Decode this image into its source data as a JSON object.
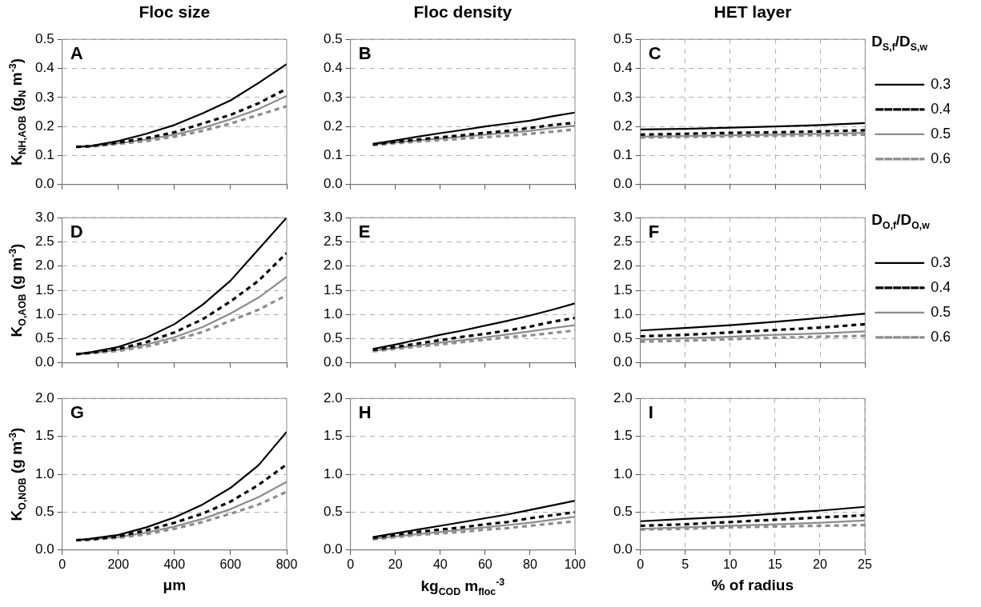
{
  "chart_data": [
    {
      "type": "line",
      "title": "Floc size",
      "ylabel": "K$_{NH,AOB}$ (g$_{N}$ m$^{-3}$)",
      "annotations": [
        "A"
      ],
      "x": [
        50,
        100,
        200,
        300,
        400,
        500,
        600,
        700,
        800
      ],
      "xlim": [
        0,
        800
      ],
      "xticks": [
        0,
        200,
        400,
        600,
        800
      ],
      "ylim": [
        0,
        0.5
      ],
      "yticks": [
        {
          "value": 0,
          "label": "0.0"
        },
        {
          "value": 0.1,
          "label": "0.1"
        },
        {
          "value": 0.2,
          "label": "0.2"
        },
        {
          "value": 0.3,
          "label": "0.3"
        },
        {
          "value": 0.4,
          "label": "0.4"
        },
        {
          "value": 0.5,
          "label": "0.5"
        }
      ],
      "grid": "y",
      "tick_labels": "y",
      "marker": "none",
      "series": [
        {
          "color": "#000000",
          "line_style": "solid",
          "values": [
            0.13,
            0.133,
            0.15,
            0.175,
            0.205,
            0.245,
            0.29,
            0.35,
            0.415
          ]
        },
        {
          "color": "#000000",
          "line_style": "dashed",
          "values": [
            0.13,
            0.132,
            0.145,
            0.16,
            0.18,
            0.21,
            0.24,
            0.28,
            0.33
          ]
        },
        {
          "color": "#8c8c8c",
          "line_style": "solid",
          "values": [
            0.13,
            0.131,
            0.142,
            0.155,
            0.172,
            0.195,
            0.225,
            0.26,
            0.305
          ]
        },
        {
          "color": "#8c8c8c",
          "line_style": "dashed",
          "values": [
            0.13,
            0.131,
            0.14,
            0.15,
            0.165,
            0.185,
            0.21,
            0.24,
            0.27
          ]
        }
      ]
    },
    {
      "type": "line",
      "title": "Floc density",
      "annotations": [
        "B"
      ],
      "x": [
        10,
        20,
        30,
        40,
        50,
        60,
        70,
        80,
        90,
        100
      ],
      "xlim": [
        0,
        100
      ],
      "xticks": [
        0,
        20,
        40,
        60,
        80,
        100
      ],
      "ylim": [
        0,
        0.5
      ],
      "yticks": [
        {
          "value": 0,
          "label": "0.0"
        },
        {
          "value": 0.1,
          "label": "0.1"
        },
        {
          "value": 0.2,
          "label": "0.2"
        },
        {
          "value": 0.3,
          "label": "0.3"
        },
        {
          "value": 0.4,
          "label": "0.4"
        },
        {
          "value": 0.5,
          "label": "0.5"
        }
      ],
      "grid": "y",
      "tick_labels": "y",
      "marker": "none",
      "series": [
        {
          "color": "#000000",
          "line_style": "solid",
          "values": [
            0.14,
            0.152,
            0.165,
            0.177,
            0.188,
            0.2,
            0.21,
            0.22,
            0.235,
            0.248
          ]
        },
        {
          "color": "#000000",
          "line_style": "dashed",
          "values": [
            0.138,
            0.147,
            0.155,
            0.163,
            0.17,
            0.178,
            0.185,
            0.195,
            0.205,
            0.213
          ]
        },
        {
          "color": "#8c8c8c",
          "line_style": "solid",
          "values": [
            0.138,
            0.145,
            0.152,
            0.158,
            0.165,
            0.172,
            0.178,
            0.185,
            0.195,
            0.203
          ]
        },
        {
          "color": "#8c8c8c",
          "line_style": "dashed",
          "values": [
            0.136,
            0.142,
            0.148,
            0.153,
            0.158,
            0.163,
            0.168,
            0.175,
            0.182,
            0.19
          ]
        }
      ]
    },
    {
      "type": "line",
      "title": "HET layer",
      "annotations": [
        "C"
      ],
      "legend": "right",
      "legend_title": "D$_{S,f}$/D$_{S,w}$",
      "x": [
        0,
        5,
        10,
        15,
        20,
        25
      ],
      "xlim": [
        0,
        25
      ],
      "xticks": [
        0,
        5,
        10,
        15,
        20,
        25
      ],
      "ylim": [
        0,
        0.5
      ],
      "yticks": [
        {
          "value": 0,
          "label": "0.0"
        },
        {
          "value": 0.1,
          "label": "0.1"
        },
        {
          "value": 0.2,
          "label": "0.2"
        },
        {
          "value": 0.3,
          "label": "0.3"
        },
        {
          "value": 0.4,
          "label": "0.4"
        },
        {
          "value": 0.5,
          "label": "0.5"
        }
      ],
      "grid": true,
      "tick_labels": "y",
      "marker": "none",
      "series": [
        {
          "name": "0.3",
          "color": "#000000",
          "line_style": "solid",
          "values": [
            0.19,
            0.192,
            0.196,
            0.2,
            0.205,
            0.212
          ]
        },
        {
          "name": "0.4",
          "color": "#000000",
          "line_style": "dashed",
          "values": [
            0.172,
            0.175,
            0.178,
            0.18,
            0.183,
            0.187
          ]
        },
        {
          "name": "0.5",
          "color": "#8c8c8c",
          "line_style": "solid",
          "values": [
            0.165,
            0.167,
            0.17,
            0.172,
            0.175,
            0.178
          ]
        },
        {
          "name": "0.6",
          "color": "#8c8c8c",
          "line_style": "dashed",
          "values": [
            0.162,
            0.164,
            0.166,
            0.168,
            0.17,
            0.172
          ]
        }
      ]
    },
    {
      "type": "line",
      "ylabel": "K$_{O,AOB}$ (g m$^{-3}$)",
      "annotations": [
        "D"
      ],
      "x": [
        50,
        100,
        200,
        300,
        400,
        500,
        600,
        700,
        800
      ],
      "xlim": [
        0,
        800
      ],
      "xticks": [
        0,
        200,
        400,
        600,
        800
      ],
      "ylim": [
        0,
        3
      ],
      "yticks": [
        {
          "value": 0,
          "label": "0.0"
        },
        {
          "value": 0.5,
          "label": "0.5"
        },
        {
          "value": 1,
          "label": "1.0"
        },
        {
          "value": 1.5,
          "label": "1.5"
        },
        {
          "value": 2,
          "label": "2.0"
        },
        {
          "value": 2.5,
          "label": "2.5"
        },
        {
          "value": 3,
          "label": "3.0"
        }
      ],
      "grid": "y",
      "tick_labels": "y",
      "marker": "none",
      "series": [
        {
          "color": "#000000",
          "line_style": "solid",
          "values": [
            0.18,
            0.22,
            0.33,
            0.52,
            0.8,
            1.2,
            1.7,
            2.35,
            3.0
          ]
        },
        {
          "color": "#000000",
          "line_style": "dashed",
          "values": [
            0.18,
            0.21,
            0.29,
            0.43,
            0.63,
            0.9,
            1.27,
            1.7,
            2.27
          ]
        },
        {
          "color": "#8c8c8c",
          "line_style": "solid",
          "values": [
            0.18,
            0.2,
            0.27,
            0.38,
            0.53,
            0.74,
            1.02,
            1.35,
            1.78
          ]
        },
        {
          "color": "#8c8c8c",
          "line_style": "dashed",
          "values": [
            0.18,
            0.2,
            0.25,
            0.34,
            0.47,
            0.64,
            0.87,
            1.1,
            1.4
          ]
        }
      ]
    },
    {
      "type": "line",
      "annotations": [
        "E"
      ],
      "x": [
        10,
        20,
        30,
        40,
        50,
        60,
        70,
        80,
        90,
        100
      ],
      "xlim": [
        0,
        100
      ],
      "xticks": [
        0,
        20,
        40,
        60,
        80,
        100
      ],
      "ylim": [
        0,
        3
      ],
      "yticks": [
        {
          "value": 0,
          "label": "0.0"
        },
        {
          "value": 0.5,
          "label": "0.5"
        },
        {
          "value": 1,
          "label": "1.0"
        },
        {
          "value": 1.5,
          "label": "1.5"
        },
        {
          "value": 2,
          "label": "2.0"
        },
        {
          "value": 2.5,
          "label": "2.5"
        },
        {
          "value": 3,
          "label": "3.0"
        }
      ],
      "grid": "y",
      "tick_labels": "y",
      "marker": "none",
      "series": [
        {
          "color": "#000000",
          "line_style": "solid",
          "values": [
            0.29,
            0.38,
            0.48,
            0.58,
            0.67,
            0.77,
            0.87,
            0.98,
            1.1,
            1.23
          ]
        },
        {
          "color": "#000000",
          "line_style": "dashed",
          "values": [
            0.27,
            0.33,
            0.4,
            0.47,
            0.54,
            0.6,
            0.67,
            0.75,
            0.85,
            0.93
          ]
        },
        {
          "color": "#8c8c8c",
          "line_style": "solid",
          "values": [
            0.25,
            0.31,
            0.36,
            0.42,
            0.47,
            0.53,
            0.59,
            0.65,
            0.72,
            0.78
          ]
        },
        {
          "color": "#8c8c8c",
          "line_style": "dashed",
          "values": [
            0.24,
            0.29,
            0.34,
            0.38,
            0.43,
            0.48,
            0.53,
            0.57,
            0.62,
            0.67
          ]
        }
      ]
    },
    {
      "type": "line",
      "annotations": [
        "F"
      ],
      "legend": "right",
      "legend_title": "D$_{O,f}$/D$_{O,w}$",
      "x": [
        0,
        5,
        10,
        15,
        20,
        25
      ],
      "xlim": [
        0,
        25
      ],
      "xticks": [
        0,
        5,
        10,
        15,
        20,
        25
      ],
      "ylim": [
        0,
        3
      ],
      "yticks": [
        {
          "value": 0,
          "label": "0.0"
        },
        {
          "value": 0.5,
          "label": "0.5"
        },
        {
          "value": 1,
          "label": "1.0"
        },
        {
          "value": 1.5,
          "label": "1.5"
        },
        {
          "value": 2,
          "label": "2.0"
        },
        {
          "value": 2.5,
          "label": "2.5"
        },
        {
          "value": 3,
          "label": "3.0"
        }
      ],
      "grid": true,
      "tick_labels": "y",
      "marker": "none",
      "series": [
        {
          "name": "0.3",
          "color": "#000000",
          "line_style": "solid",
          "values": [
            0.67,
            0.72,
            0.78,
            0.85,
            0.93,
            1.02
          ]
        },
        {
          "name": "0.4",
          "color": "#000000",
          "line_style": "dashed",
          "values": [
            0.55,
            0.58,
            0.63,
            0.68,
            0.73,
            0.8
          ]
        },
        {
          "name": "0.5",
          "color": "#8c8c8c",
          "line_style": "solid",
          "values": [
            0.48,
            0.51,
            0.54,
            0.58,
            0.61,
            0.65
          ]
        },
        {
          "name": "0.6",
          "color": "#8c8c8c",
          "line_style": "dashed",
          "values": [
            0.44,
            0.46,
            0.49,
            0.52,
            0.54,
            0.56
          ]
        }
      ]
    },
    {
      "type": "line",
      "ylabel": "K$_{O,NOB}$ (g m$^{-3}$)",
      "xlabel": "μm",
      "annotations": [
        "G"
      ],
      "x": [
        50,
        100,
        200,
        300,
        400,
        500,
        600,
        700,
        800
      ],
      "xlim": [
        0,
        800
      ],
      "xticks": [
        0,
        200,
        400,
        600,
        800
      ],
      "ylim": [
        0,
        2
      ],
      "yticks": [
        {
          "value": 0,
          "label": "0.0"
        },
        {
          "value": 0.5,
          "label": "0.5"
        },
        {
          "value": 1,
          "label": "1.0"
        },
        {
          "value": 1.5,
          "label": "1.5"
        },
        {
          "value": 2,
          "label": "2.0"
        }
      ],
      "grid": "y",
      "marker": "none",
      "series": [
        {
          "color": "#000000",
          "line_style": "solid",
          "values": [
            0.13,
            0.15,
            0.2,
            0.3,
            0.43,
            0.6,
            0.82,
            1.12,
            1.56
          ]
        },
        {
          "color": "#000000",
          "line_style": "dashed",
          "values": [
            0.13,
            0.14,
            0.18,
            0.26,
            0.36,
            0.48,
            0.64,
            0.86,
            1.13
          ]
        },
        {
          "color": "#8c8c8c",
          "line_style": "solid",
          "values": [
            0.13,
            0.14,
            0.17,
            0.23,
            0.31,
            0.41,
            0.54,
            0.7,
            0.9
          ]
        },
        {
          "color": "#8c8c8c",
          "line_style": "dashed",
          "values": [
            0.13,
            0.14,
            0.16,
            0.21,
            0.28,
            0.37,
            0.48,
            0.6,
            0.77
          ]
        }
      ]
    },
    {
      "type": "line",
      "xlabel": "kg$_{COD}$ m$_{floc}$$^{-3}$",
      "annotations": [
        "H"
      ],
      "x": [
        10,
        20,
        30,
        40,
        50,
        60,
        70,
        80,
        90,
        100
      ],
      "xlim": [
        0,
        100
      ],
      "xticks": [
        0,
        20,
        40,
        60,
        80,
        100
      ],
      "ylim": [
        0,
        2
      ],
      "yticks": [
        {
          "value": 0,
          "label": "0.0"
        },
        {
          "value": 0.5,
          "label": "0.5"
        },
        {
          "value": 1,
          "label": "1.0"
        },
        {
          "value": 1.5,
          "label": "1.5"
        },
        {
          "value": 2,
          "label": "2.0"
        }
      ],
      "grid": "y",
      "marker": "none",
      "series": [
        {
          "color": "#000000",
          "line_style": "solid",
          "values": [
            0.17,
            0.22,
            0.27,
            0.32,
            0.37,
            0.42,
            0.47,
            0.53,
            0.59,
            0.65
          ]
        },
        {
          "color": "#000000",
          "line_style": "dashed",
          "values": [
            0.16,
            0.2,
            0.24,
            0.27,
            0.3,
            0.34,
            0.37,
            0.42,
            0.46,
            0.5
          ]
        },
        {
          "color": "#8c8c8c",
          "line_style": "solid",
          "values": [
            0.15,
            0.18,
            0.21,
            0.24,
            0.27,
            0.3,
            0.33,
            0.36,
            0.4,
            0.44
          ]
        },
        {
          "color": "#8c8c8c",
          "line_style": "dashed",
          "values": [
            0.14,
            0.17,
            0.2,
            0.22,
            0.24,
            0.27,
            0.29,
            0.32,
            0.35,
            0.38
          ]
        }
      ]
    },
    {
      "type": "line",
      "xlabel": "% of radius",
      "annotations": [
        "I"
      ],
      "x": [
        0,
        5,
        10,
        15,
        20,
        25
      ],
      "xlim": [
        0,
        25
      ],
      "xticks": [
        0,
        5,
        10,
        15,
        20,
        25
      ],
      "ylim": [
        0,
        2
      ],
      "yticks": [
        {
          "value": 0,
          "label": "0.0"
        },
        {
          "value": 0.5,
          "label": "0.5"
        },
        {
          "value": 1,
          "label": "1.0"
        },
        {
          "value": 1.5,
          "label": "1.5"
        },
        {
          "value": 2,
          "label": "2.0"
        }
      ],
      "grid": true,
      "marker": "none",
      "series": [
        {
          "color": "#000000",
          "line_style": "solid",
          "values": [
            0.38,
            0.41,
            0.44,
            0.48,
            0.52,
            0.57
          ]
        },
        {
          "color": "#000000",
          "line_style": "dashed",
          "values": [
            0.32,
            0.34,
            0.37,
            0.4,
            0.43,
            0.46
          ]
        },
        {
          "color": "#8c8c8c",
          "line_style": "solid",
          "values": [
            0.28,
            0.3,
            0.32,
            0.34,
            0.36,
            0.39
          ]
        },
        {
          "color": "#8c8c8c",
          "line_style": "dashed",
          "values": [
            0.27,
            0.28,
            0.3,
            0.31,
            0.32,
            0.33
          ]
        }
      ]
    }
  ]
}
